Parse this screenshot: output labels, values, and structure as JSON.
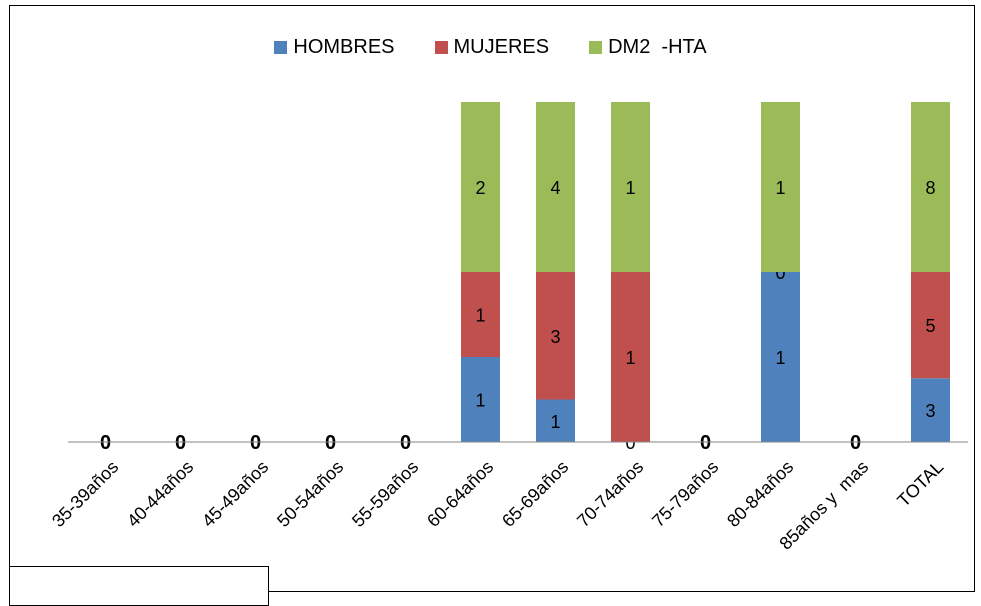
{
  "chart_data": {
    "type": "bar",
    "stacked": true,
    "categories": [
      "35-39años",
      "40-44años",
      "45-49años",
      "50-54años",
      "55-59años",
      "60-64años",
      "65-69años",
      "70-74años",
      "75-79años",
      "80-84años",
      "85años y  mas",
      "TOTAL"
    ],
    "series": [
      {
        "name": "HOMBRES",
        "color": "#4F81BD",
        "values": [
          0,
          0,
          0,
          0,
          0,
          1,
          1,
          0,
          0,
          1,
          0,
          3
        ]
      },
      {
        "name": "MUJERES",
        "color": "#C0504D",
        "values": [
          0,
          0,
          0,
          0,
          0,
          1,
          3,
          1,
          0,
          0,
          0,
          5
        ]
      },
      {
        "name": "DM2  -HTA",
        "color": "#9BBB59",
        "values": [
          0,
          0,
          0,
          0,
          0,
          2,
          4,
          1,
          0,
          1,
          0,
          8
        ]
      }
    ],
    "normalized": "100%",
    "title": "",
    "xlabel": "",
    "ylabel": "",
    "legend_position": "top",
    "grid": false
  }
}
